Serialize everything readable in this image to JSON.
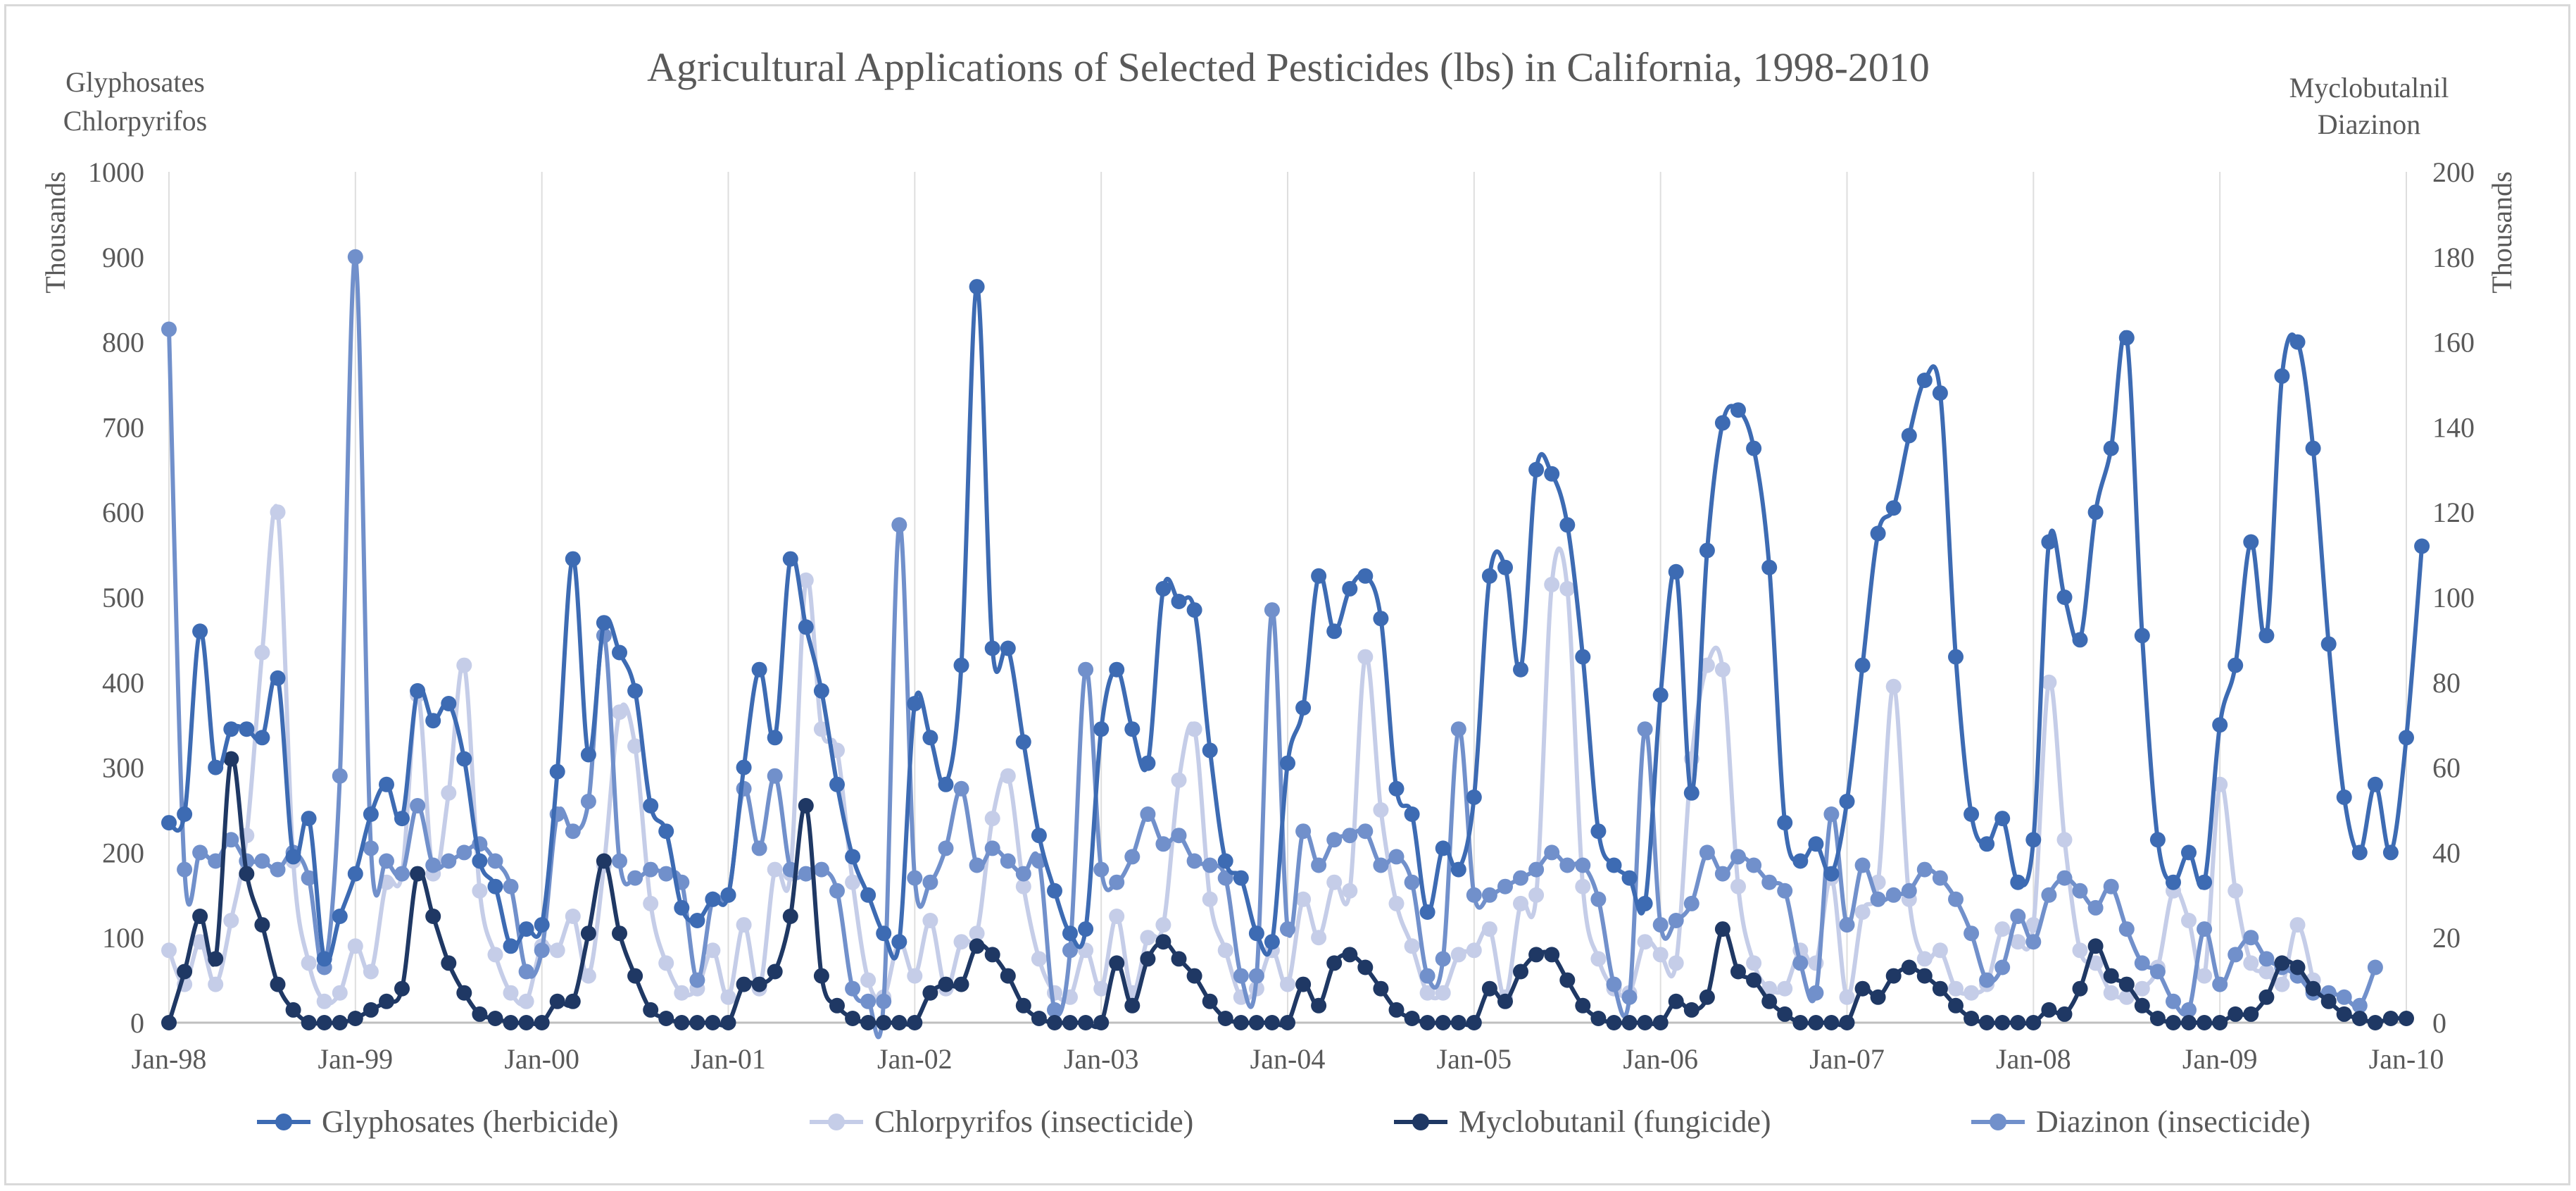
{
  "chart_data": {
    "type": "line",
    "title": "Agricultural Applications  of Selected Pesticides (lbs) in California,  1998-2010",
    "left_axis": {
      "corner_label_lines": [
        "Glyphosates",
        "Chlorpyrifos"
      ],
      "unit_label": "Thousands",
      "ylim": [
        0,
        1000
      ],
      "ticks": [
        "0",
        "100",
        "200",
        "300",
        "400",
        "500",
        "600",
        "700",
        "800",
        "900",
        "1000"
      ]
    },
    "right_axis": {
      "corner_label_lines": [
        "Myclobutalnil",
        "Diazinon"
      ],
      "unit_label": "Thousands",
      "ylim": [
        0,
        200
      ],
      "ticks": [
        "0",
        "20",
        "40",
        "60",
        "80",
        "100",
        "120",
        "140",
        "160",
        "180",
        "200"
      ]
    },
    "x_ticks": [
      "Jan-98",
      "Jan-99",
      "Jan-00",
      "Jan-01",
      "Jan-02",
      "Jan-03",
      "Jan-04",
      "Jan-05",
      "Jan-06",
      "Jan-07",
      "Jan-08",
      "Jan-09",
      "Jan-10"
    ],
    "x_unit": "month index from Jan-98",
    "vertical_gridlines": true,
    "legend_position": "bottom",
    "series": [
      {
        "name": "Glyphosates  (herbicide)",
        "axis": "left",
        "color": "#3d6bb3",
        "values": [
          235,
          245,
          460,
          300,
          345,
          345,
          335,
          405,
          195,
          240,
          75,
          125,
          175,
          245,
          280,
          240,
          390,
          355,
          375,
          310,
          190,
          160,
          90,
          110,
          115,
          295,
          545,
          315,
          470,
          435,
          390,
          255,
          225,
          135,
          120,
          145,
          150,
          300,
          415,
          335,
          545,
          465,
          390,
          280,
          195,
          150,
          105,
          95,
          375,
          335,
          280,
          420,
          865,
          440,
          440,
          330,
          220,
          155,
          105,
          110,
          345,
          415,
          345,
          305,
          510,
          495,
          485,
          320,
          190,
          170,
          105,
          95,
          305,
          370,
          525,
          460,
          510,
          525,
          475,
          275,
          245,
          130,
          205,
          180,
          265,
          525,
          535,
          415,
          650,
          645,
          585,
          430,
          225,
          185,
          170,
          140,
          385,
          530,
          270,
          555,
          705,
          720,
          675,
          535,
          235,
          190,
          210,
          175,
          260,
          420,
          575,
          605,
          690,
          755,
          740,
          430,
          245,
          210,
          240,
          165,
          215,
          565,
          500,
          450,
          600,
          675,
          805,
          455,
          215,
          165,
          200,
          165,
          350,
          420,
          565,
          455,
          760,
          800,
          675,
          445,
          265,
          200,
          280,
          200,
          335,
          560
        ]
      },
      {
        "name": "Chlorpyrifos (insecticide)",
        "axis": "left",
        "color": "#c5cde8",
        "values": [
          85,
          45,
          95,
          45,
          120,
          220,
          435,
          600,
          190,
          70,
          25,
          35,
          90,
          60,
          165,
          175,
          385,
          175,
          270,
          420,
          155,
          80,
          35,
          25,
          90,
          85,
          125,
          55,
          185,
          365,
          325,
          140,
          70,
          35,
          40,
          85,
          30,
          115,
          40,
          180,
          175,
          520,
          345,
          320,
          165,
          50,
          30,
          95,
          55,
          120,
          40,
          95,
          105,
          240,
          290,
          160,
          75,
          35,
          30,
          85,
          40,
          125,
          35,
          100,
          115,
          285,
          345,
          145,
          85,
          30,
          40,
          85,
          45,
          145,
          100,
          165,
          155,
          430,
          250,
          140,
          90,
          35,
          35,
          80,
          85,
          110,
          30,
          140,
          150,
          515,
          510,
          160,
          75,
          40,
          35,
          95,
          80,
          70,
          310,
          420,
          415,
          160,
          70,
          40,
          40,
          85,
          70,
          170,
          30,
          130,
          165,
          395,
          145,
          75,
          85,
          40,
          35,
          45,
          110,
          95,
          115,
          400,
          215,
          85,
          70,
          35,
          30,
          40,
          65,
          155,
          120,
          55,
          280,
          155,
          70,
          60,
          45,
          115,
          50
        ]
      },
      {
        "name": "Myclobutanil (fungicide)",
        "axis": "right",
        "color": "#1f3864",
        "values": [
          0,
          12,
          25,
          15,
          62,
          35,
          23,
          9,
          3,
          0,
          0,
          0,
          1,
          3,
          5,
          8,
          35,
          25,
          14,
          7,
          2,
          1,
          0,
          0,
          0,
          5,
          5,
          21,
          38,
          21,
          11,
          3,
          1,
          0,
          0,
          0,
          0,
          9,
          9,
          12,
          25,
          51,
          11,
          4,
          1,
          0,
          0,
          0,
          0,
          7,
          9,
          9,
          18,
          16,
          11,
          4,
          1,
          0,
          0,
          0,
          0,
          14,
          4,
          15,
          19,
          15,
          11,
          5,
          1,
          0,
          0,
          0,
          0,
          9,
          4,
          14,
          16,
          13,
          8,
          3,
          1,
          0,
          0,
          0,
          0,
          8,
          5,
          12,
          16,
          16,
          10,
          4,
          1,
          0,
          0,
          0,
          0,
          5,
          3,
          6,
          22,
          12,
          10,
          5,
          2,
          0,
          0,
          0,
          0,
          8,
          6,
          11,
          13,
          11,
          8,
          4,
          1,
          0,
          0,
          0,
          0,
          3,
          2,
          8,
          18,
          11,
          9,
          4,
          1,
          0,
          0,
          0,
          0,
          2,
          2,
          6,
          14,
          13,
          8,
          5,
          2,
          1,
          0,
          1,
          1
        ]
      },
      {
        "name": "Diazinon (insecticide)",
        "axis": "right",
        "color": "#7190cb",
        "values": [
          163,
          36,
          40,
          38,
          43,
          38,
          38,
          36,
          40,
          34,
          13,
          58,
          180,
          41,
          38,
          35,
          51,
          37,
          38,
          40,
          42,
          38,
          32,
          12,
          17,
          49,
          45,
          52,
          91,
          38,
          34,
          36,
          35,
          33,
          10,
          29,
          30,
          55,
          41,
          58,
          36,
          35,
          36,
          31,
          8,
          5,
          5,
          117,
          34,
          33,
          41,
          55,
          37,
          41,
          38,
          35,
          38,
          3,
          17,
          83,
          36,
          33,
          39,
          49,
          42,
          44,
          38,
          37,
          34,
          11,
          11,
          97,
          22,
          45,
          37,
          43,
          44,
          45,
          37,
          39,
          33,
          11,
          15,
          69,
          30,
          30,
          32,
          34,
          36,
          40,
          37,
          37,
          29,
          9,
          6,
          69,
          23,
          24,
          28,
          40,
          35,
          39,
          37,
          33,
          31,
          14,
          7,
          49,
          23,
          37,
          29,
          30,
          31,
          36,
          34,
          29,
          21,
          10,
          13,
          25,
          19,
          30,
          34,
          31,
          27,
          32,
          22,
          14,
          12,
          5,
          3,
          22,
          9,
          16,
          20,
          15,
          13,
          11,
          7,
          7,
          6,
          4,
          13
        ]
      }
    ]
  }
}
